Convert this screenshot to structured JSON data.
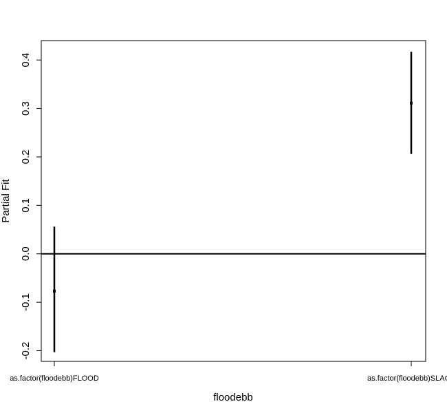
{
  "chart_data": {
    "type": "errorbar",
    "title": "",
    "xlabel": "floodebb",
    "ylabel": "Partial Fit",
    "categories": [
      "as.factor(floodebb)FLOOD",
      "as.factor(floodebb)SLACK"
    ],
    "points": [
      {
        "category": "as.factor(floodebb)FLOOD",
        "estimate": -0.077,
        "lower": -0.203,
        "upper": 0.056
      },
      {
        "category": "as.factor(floodebb)SLACK",
        "estimate": 0.311,
        "lower": 0.206,
        "upper": 0.417
      }
    ],
    "reference_line": 0,
    "ylim": [
      -0.222,
      0.44
    ],
    "y_ticks": [
      -0.2,
      -0.1,
      0.0,
      0.1,
      0.2,
      0.3,
      0.4
    ],
    "y_tick_labels": [
      "-0.2",
      "-0.1",
      "0.0",
      "0.1",
      "0.2",
      "0.3",
      "0.4"
    ],
    "grid": false,
    "legend": "none"
  }
}
